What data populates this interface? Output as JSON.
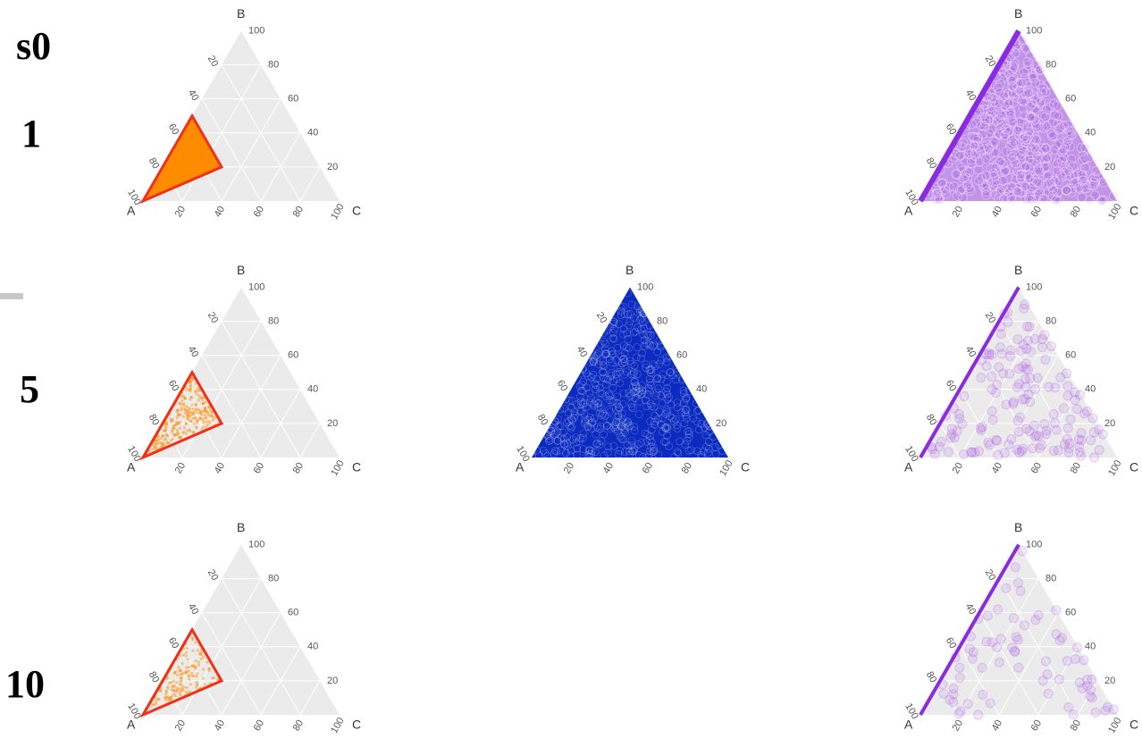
{
  "row_labels": [
    "s0",
    "1",
    "5",
    "10"
  ],
  "axes": {
    "labels": [
      "A",
      "B",
      "C"
    ],
    "ticks": [
      20,
      40,
      60,
      80,
      100
    ]
  }
}
